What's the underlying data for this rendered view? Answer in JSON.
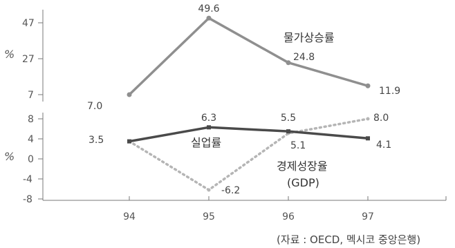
{
  "chart_data": [
    {
      "type": "line",
      "panel": "top",
      "ylabel": "%",
      "ylim": [
        7,
        47
      ],
      "yticks": [
        "47",
        "27",
        "7"
      ],
      "x": [
        "94",
        "95",
        "96",
        "97"
      ],
      "series": [
        {
          "name": "물가상승률",
          "values": [
            7.0,
            49.6,
            24.8,
            11.9
          ],
          "labels": [
            "7.0",
            "49.6",
            "24.8",
            "11.9"
          ],
          "color": "#8f8f8f",
          "style": "solid"
        }
      ]
    },
    {
      "type": "line",
      "panel": "bottom",
      "ylabel": "%",
      "ylim": [
        -8,
        8
      ],
      "yticks": [
        "8",
        "4",
        "0",
        "-4",
        "-8"
      ],
      "x": [
        "94",
        "95",
        "96",
        "97"
      ],
      "xticks": [
        "94",
        "95",
        "96",
        "97"
      ],
      "series": [
        {
          "name": "실업률",
          "values": [
            3.5,
            6.3,
            5.5,
            4.1
          ],
          "labels": [
            "3.5",
            "6.3",
            "5.5",
            "4.1"
          ],
          "color": "#4a4a4a",
          "style": "solid"
        },
        {
          "name": "경제성장율",
          "name2": "(GDP)",
          "values": [
            3.5,
            -6.2,
            5.1,
            8.0
          ],
          "labels": [
            "",
            "-6.2",
            "5.1",
            "8.0"
          ],
          "color": "#b5b5b5",
          "style": "dotted"
        }
      ]
    }
  ],
  "source": "(자료 : OECD, 멕시코 중앙은행)"
}
